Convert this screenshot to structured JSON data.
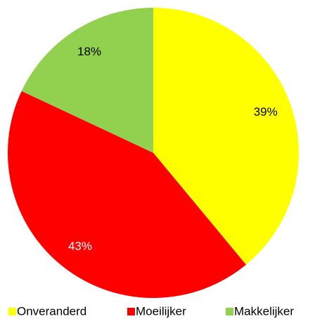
{
  "chart_data": {
    "type": "pie",
    "categories": [
      "Onveranderd",
      "Moeilijker",
      "Makkelijker"
    ],
    "values": [
      39,
      43,
      18
    ],
    "value_labels": [
      "39%",
      "43%",
      "18%"
    ],
    "colors": [
      "#ffff00",
      "#ff0000",
      "#92d050"
    ],
    "label_colors": [
      "#000000",
      "#ffffff",
      "#000000"
    ],
    "start_angle": 90,
    "direction": "clockwise",
    "legend": "bottom"
  }
}
